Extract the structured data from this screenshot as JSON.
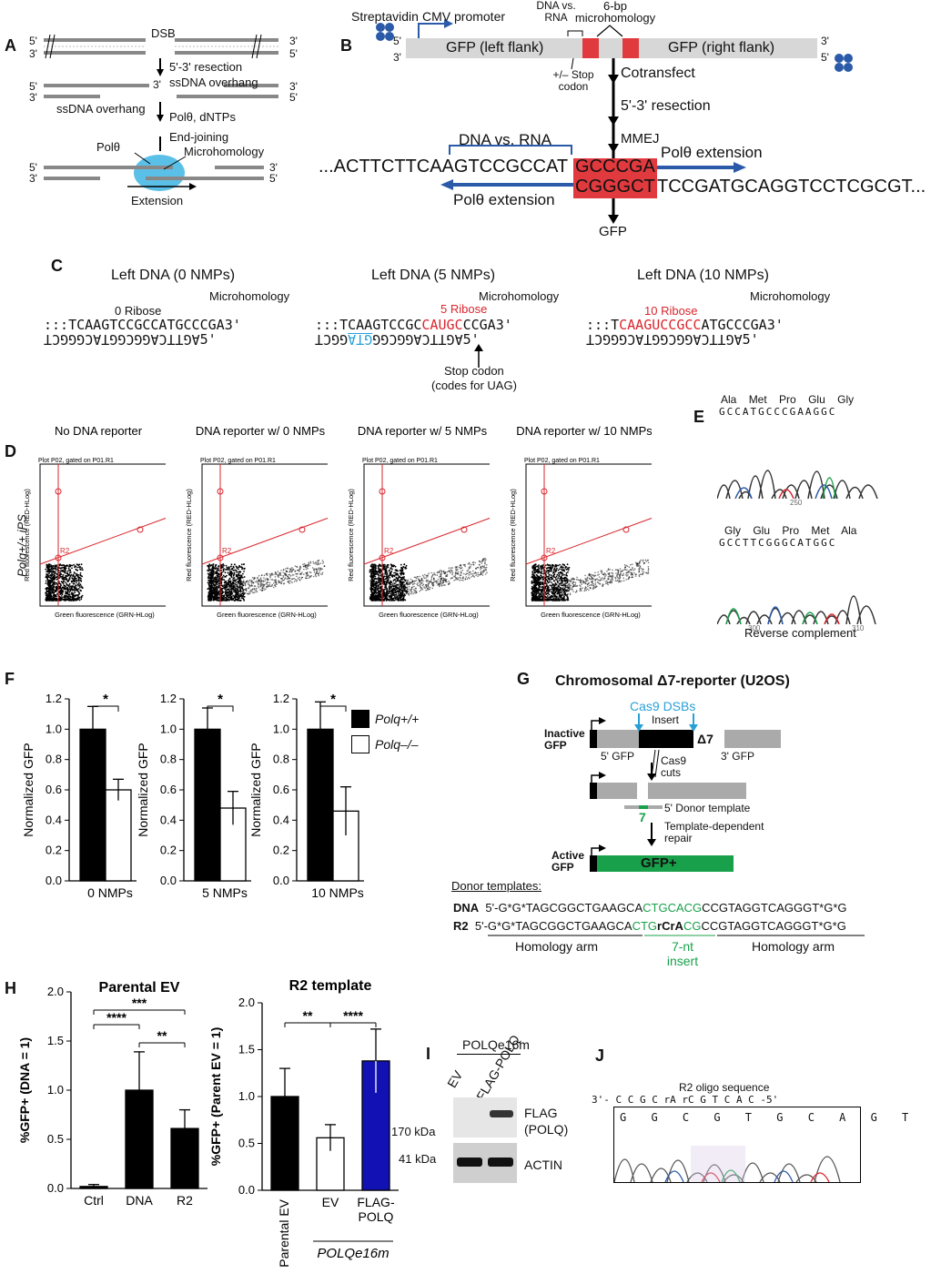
{
  "panels": {
    "A": {
      "label": "A",
      "dsb": "DSB",
      "resection": "5'-3' resection",
      "ssdna_overhang_top": "ssDNA overhang",
      "ssdna_overhang_left": "ssDNA overhang",
      "pol_dntps": "Polθ, dNTPs",
      "end_joining": "End-joining",
      "poltheta": "Polθ",
      "microhomology": "Microhomology",
      "extension": "Extension",
      "p5": "5'",
      "p3": "3'"
    },
    "B": {
      "label": "B",
      "streptavidin": "Streptavidin",
      "cmv": "CMV promoter",
      "dna_vs_rna_small": "DNA vs. RNA",
      "six_bp": "6-bp microhomology",
      "gfp_left": "GFP (left flank)",
      "gfp_right": "GFP (right flank)",
      "stop_codon": "+/– Stop codon",
      "cotransfect": "Cotransfect",
      "resection": "5'-3' resection",
      "mmej": "MMEJ",
      "dna_vs_rna": "DNA vs. RNA",
      "pol_ext_top": "Polθ extension",
      "pol_ext_bot": "Polθ extension",
      "seq_left": "...ACTTCTTCAAGTCCGCCAT",
      "seq_mh_top": "GCCCGA",
      "seq_mh_bot": "CGGGCT",
      "seq_right": "TCCGATGCAGGTCCTCGCGT...",
      "gfp": "GFP",
      "p5": "5'",
      "p3": "3'"
    },
    "C": {
      "label": "C",
      "titles": [
        "Left DNA (0 NMPs)",
        "Left DNA (5 NMPs)",
        "Left DNA (10 NMPs)"
      ],
      "ribose": [
        "0 Ribose",
        "5 Ribose",
        "10 Ribose"
      ],
      "microhomology": "Microhomology",
      "stop_codon": "Stop codon",
      "codes_for": "(codes for UAG)",
      "seq0_top": "TCAAGTCCGCCATGCCCGA",
      "seq0_bot": "AGTTCAGGCGGTACGGGCT",
      "seq5_top_a": "TCAAGTCCGC",
      "seq5_top_b": "CAUGC",
      "seq5_top_c": "CCGA",
      "seq5_bot_a": "AGTTCAGGCGG",
      "seq5_bot_b": "GTA",
      "seq5_bot_c": "GGCT",
      "seq10_top_a": "T",
      "seq10_top_b": "CAAGUCCGCC",
      "seq10_top_c": "ATGCCCGA",
      "seq10_bot": "AGTTCAGGCGGTACGGGCT",
      "dots": ":::",
      "p3": "3'",
      "p5": "5'"
    },
    "D": {
      "label": "D",
      "row_label": "Polq+/+ iPS",
      "titles": [
        "No DNA reporter",
        "DNA reporter w/ 0 NMPs",
        "DNA reporter w/ 5 NMPs",
        "DNA reporter w/ 10 NMPs"
      ],
      "plot_title": "Plot P02, gated on P01.R1",
      "xlabel": "Green fluorescence (GRN-HLog)",
      "ylabel": "Red fluorescence (RED-HLog)",
      "region": "R2"
    },
    "E": {
      "label": "E",
      "top_aa": [
        "Ala",
        "Met",
        "Pro",
        "Glu",
        "Gly"
      ],
      "top_seq": "GCCATGCCCGAAGGC",
      "top_tick": "250",
      "bot_aa": [
        "Gly",
        "Glu",
        "Pro",
        "Met",
        "Ala"
      ],
      "bot_seq": "GCCTTCGGGCATGGC",
      "bot_ticks": [
        "300",
        "310"
      ],
      "caption": "Reverse complement"
    },
    "F": {
      "label": "F",
      "legend": [
        "Polq+/+",
        "Polq–/–"
      ]
    },
    "G": {
      "label": "G",
      "title": "Chromosomal Δ7-reporter (U2OS)",
      "cas9_dsbs": "Cas9 DSBs",
      "insert": "Insert",
      "delta7": "Δ7",
      "inactive": "Inactive GFP",
      "gfp5": "5' GFP",
      "gfp3": "3' GFP",
      "cas9_cuts": "Cas9 cuts",
      "donor_template": "5' Donor template",
      "seven": "7",
      "template_repair": "Template-dependent repair",
      "active": "Active GFP",
      "gfp_plus": "GFP+",
      "donor_templates": "Donor templates:",
      "dna_label": "DNA",
      "r2_label": "R2",
      "dna_a": "5'-G*G*TAGCGGCTGAAGCA",
      "dna_b": "CTGCACG",
      "dna_c": "CCGTAGGTCAGGGT*G*G",
      "r2_a": "5'-G*G*TAGCGGCTGAAGCA",
      "r2_b1": "CTG",
      "r2_b2": "rC",
      "r2_b3": "rA",
      "r2_b4": "CG",
      "r2_c": "CCGTAGGTCAGGGT*G*G",
      "homology_arm": "Homology arm",
      "insert_7nt": "7-nt insert"
    },
    "H": {
      "label": "H"
    },
    "I": {
      "label": "I",
      "polq_header": "POLQe16m",
      "lanes": [
        "EV",
        "FLAG-POLQ"
      ],
      "flag": "FLAG (POLQ)",
      "actin": "ACTIN",
      "kda170": "170 kDa",
      "kda41": "41 kDa"
    },
    "J": {
      "label": "J",
      "title": "R2 oligo sequence",
      "top_seq": "3'- C C G C rA rC G T C A C -5'",
      "bot_seq": "G G C G T G C A G T G"
    }
  },
  "chart_data": [
    {
      "id": "F1",
      "type": "bar",
      "categories": [
        "0 NMPs"
      ],
      "series": [
        {
          "name": "Polq+/+",
          "values": [
            1.0
          ],
          "err": [
            0.15
          ]
        },
        {
          "name": "Polq–/–",
          "values": [
            0.6
          ],
          "err": [
            0.07
          ]
        }
      ],
      "ylabel": "Normalized GFP",
      "ylim": [
        0,
        1.2
      ],
      "yticks": [
        0.0,
        0.2,
        0.4,
        0.6,
        0.8,
        1.0,
        1.2
      ],
      "significance": "*"
    },
    {
      "id": "F2",
      "type": "bar",
      "categories": [
        "5 NMPs"
      ],
      "series": [
        {
          "name": "Polq+/+",
          "values": [
            1.0
          ],
          "err": [
            0.14
          ]
        },
        {
          "name": "Polq–/–",
          "values": [
            0.48
          ],
          "err": [
            0.11
          ]
        }
      ],
      "ylabel": "Normalized GFP",
      "ylim": [
        0,
        1.2
      ],
      "yticks": [
        0.0,
        0.2,
        0.4,
        0.6,
        0.8,
        1.0,
        1.2
      ],
      "significance": "*"
    },
    {
      "id": "F3",
      "type": "bar",
      "categories": [
        "10 NMPs"
      ],
      "series": [
        {
          "name": "Polq+/+",
          "values": [
            1.0
          ],
          "err": [
            0.18
          ]
        },
        {
          "name": "Polq–/–",
          "values": [
            0.46
          ],
          "err": [
            0.16
          ]
        }
      ],
      "ylabel": "Normalized GFP",
      "ylim": [
        0,
        1.2
      ],
      "yticks": [
        0.0,
        0.2,
        0.4,
        0.6,
        0.8,
        1.0,
        1.2
      ],
      "significance": "*"
    },
    {
      "id": "H1",
      "type": "bar",
      "title": "Parental EV",
      "categories": [
        "Ctrl",
        "DNA",
        "R2"
      ],
      "values": [
        0.02,
        1.0,
        0.61
      ],
      "err": [
        0.02,
        0.39,
        0.19
      ],
      "colors": [
        "#000000",
        "#000000",
        "#000000"
      ],
      "ylabel": "%GFP+ (DNA = 1)",
      "ylim": [
        0,
        2.0
      ],
      "yticks": [
        0.0,
        0.5,
        1.0,
        1.5,
        2.0
      ],
      "significance": [
        {
          "pair": [
            0,
            2
          ],
          "label": "***"
        },
        {
          "pair": [
            0,
            1
          ],
          "label": "****"
        },
        {
          "pair": [
            1,
            2
          ],
          "label": "**"
        }
      ]
    },
    {
      "id": "H2",
      "type": "bar",
      "title": "R2 template",
      "categories": [
        "Parental EV",
        "EV",
        "FLAG-POLQ"
      ],
      "values": [
        1.0,
        0.56,
        1.38
      ],
      "err": [
        0.3,
        0.14,
        0.34
      ],
      "colors": [
        "#000000",
        "#ffffff",
        "#1212b4"
      ],
      "ylabel": "%GFP+ (Parent EV = 1)",
      "ylim": [
        0,
        2.0
      ],
      "yticks": [
        0.0,
        0.5,
        1.0,
        1.5,
        2.0
      ],
      "group_label": "POLQe16m",
      "significance": [
        {
          "pair": [
            0,
            1
          ],
          "label": "**"
        },
        {
          "pair": [
            1,
            2
          ],
          "label": "****"
        }
      ]
    }
  ]
}
